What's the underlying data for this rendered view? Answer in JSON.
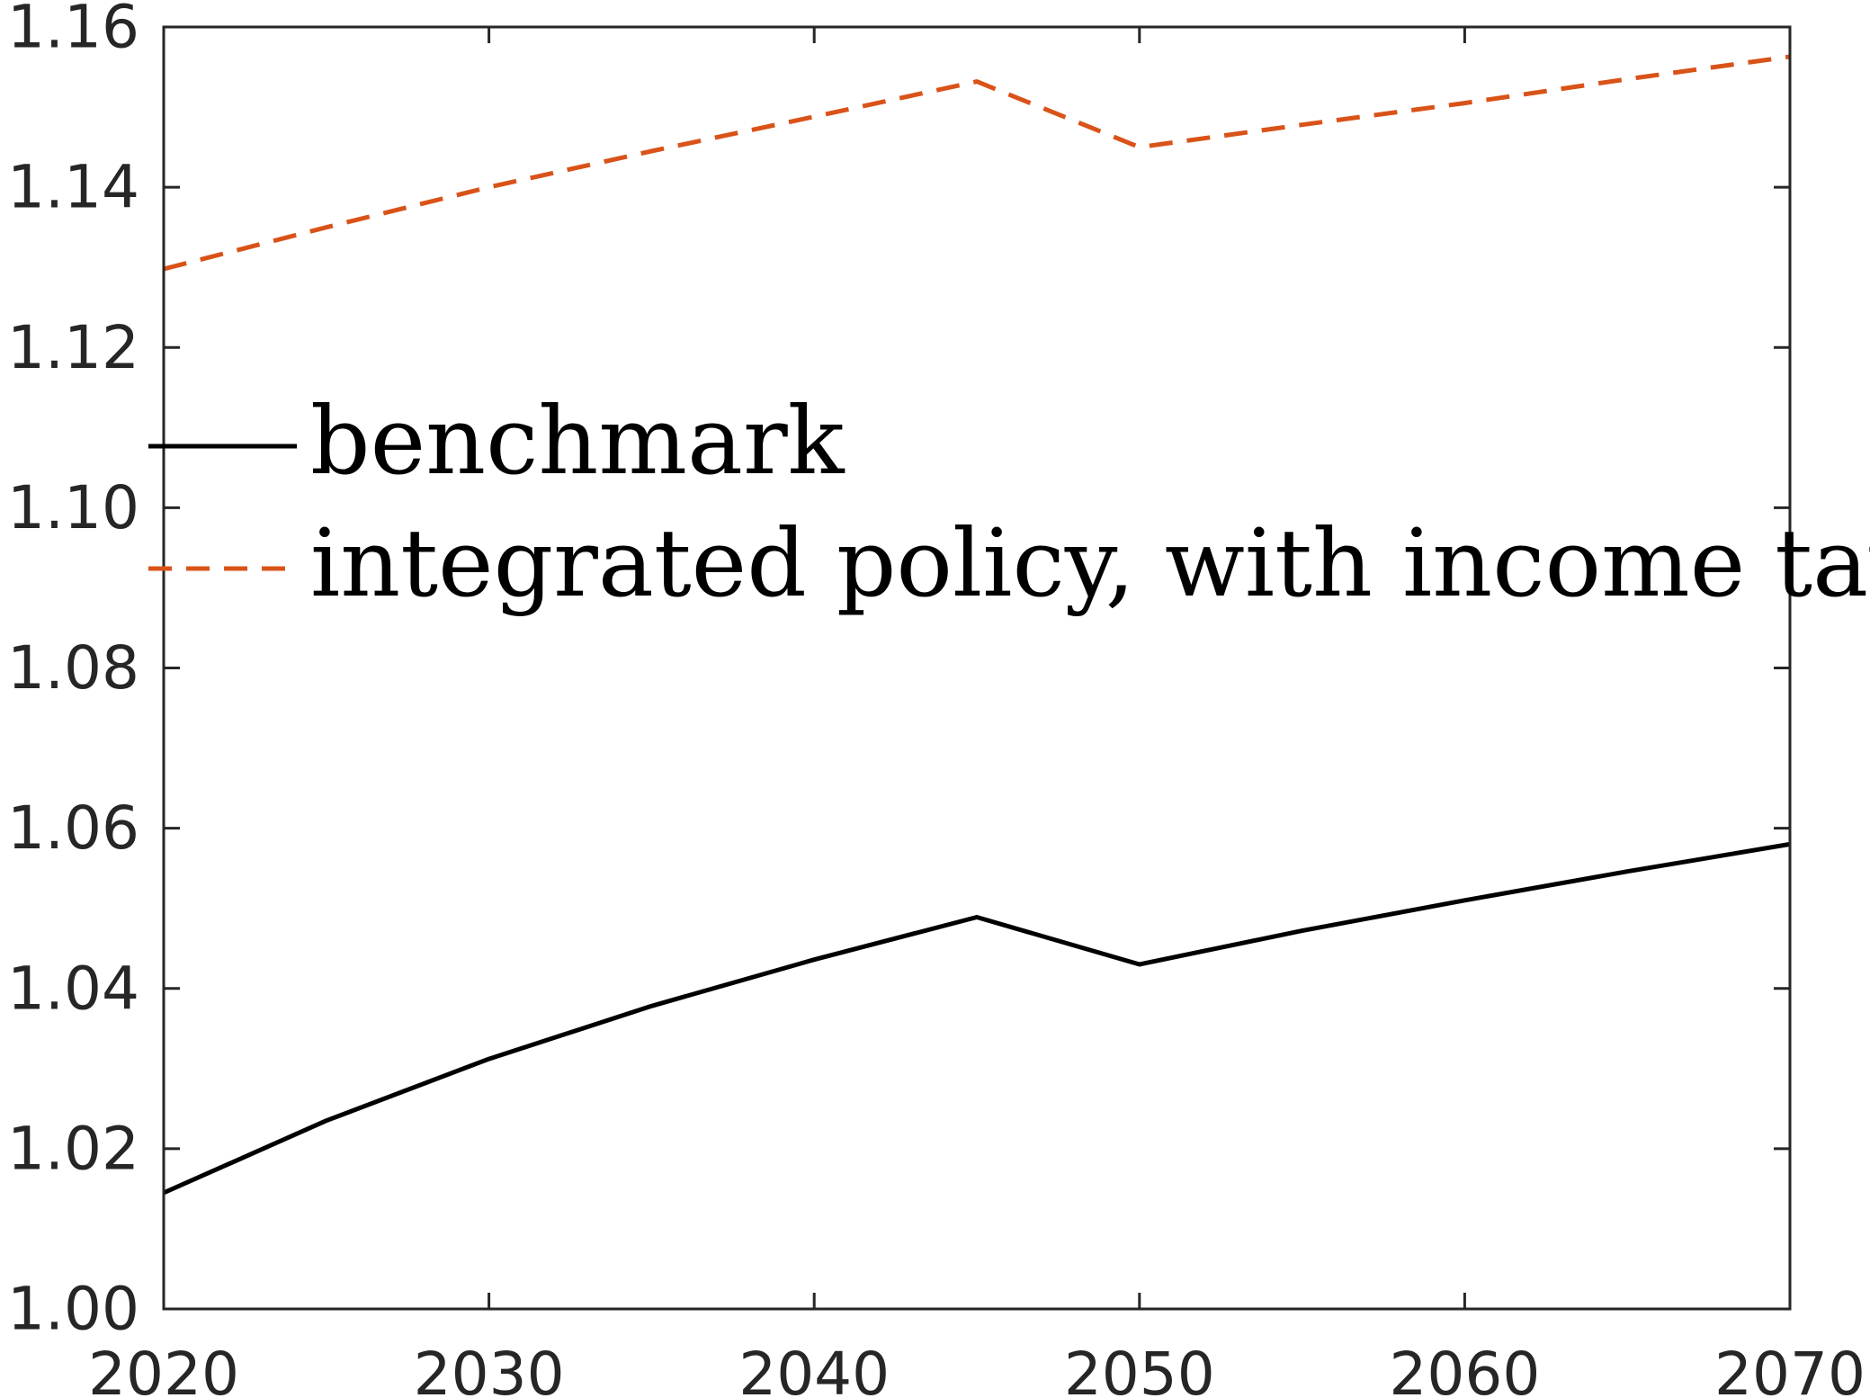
{
  "chart_data": {
    "type": "line",
    "title": "",
    "xlabel": "",
    "ylabel": "",
    "xlim": [
      2020,
      2070
    ],
    "ylim": [
      1.0,
      1.16
    ],
    "xticks": [
      2020,
      2030,
      2040,
      2050,
      2060,
      2070
    ],
    "xtick_labels": [
      "2020",
      "2030",
      "2040",
      "2050",
      "2060",
      "2070"
    ],
    "yticks": [
      1.0,
      1.02,
      1.04,
      1.06,
      1.08,
      1.1,
      1.12,
      1.14,
      1.16
    ],
    "ytick_labels": [
      "1.00",
      "1.02",
      "1.04",
      "1.06",
      "1.08",
      "1.10",
      "1.12",
      "1.14",
      "1.16"
    ],
    "grid": false,
    "legend": "center-left",
    "series": [
      {
        "name": "benchmark",
        "color": "#000000",
        "line_style": "solid",
        "x": [
          2020,
          2025,
          2030,
          2035,
          2040,
          2045,
          2050,
          2055,
          2060,
          2065,
          2070
        ],
        "y": [
          1.0145,
          1.0235,
          1.0312,
          1.0378,
          1.0436,
          1.0489,
          1.043,
          1.0472,
          1.051,
          1.0546,
          1.058
        ]
      },
      {
        "name": "integrated policy, with income tax",
        "color": "#D95319",
        "line_style": "dashed",
        "x": [
          2020,
          2025,
          2030,
          2035,
          2040,
          2045,
          2050,
          2055,
          2060,
          2065,
          2070
        ],
        "y": [
          1.1298,
          1.135,
          1.14,
          1.1445,
          1.1488,
          1.1532,
          1.145,
          1.1478,
          1.1505,
          1.1535,
          1.1563
        ]
      }
    ]
  }
}
